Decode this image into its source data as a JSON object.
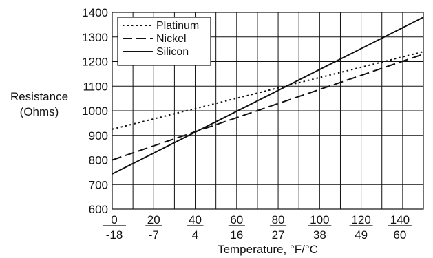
{
  "chart_data": {
    "type": "line",
    "xlabel": "Temperature, °F/°C",
    "ylabel_lines": [
      "Resistance",
      "(Ohms)"
    ],
    "x_ticks": [
      {
        "f": "0",
        "c": "-18"
      },
      {
        "f": "20",
        "c": "-7"
      },
      {
        "f": "40",
        "c": "4"
      },
      {
        "f": "60",
        "c": "16"
      },
      {
        "f": "80",
        "c": "27"
      },
      {
        "f": "100",
        "c": "38"
      },
      {
        "f": "120",
        "c": "49"
      },
      {
        "f": "140",
        "c": "60"
      }
    ],
    "y_ticks": [
      "600",
      "700",
      "800",
      "900",
      "1000",
      "1100",
      "1200",
      "1300",
      "1400"
    ],
    "xlim": [
      0,
      150
    ],
    "ylim": [
      600,
      1400
    ],
    "grid": true,
    "legend_position": "top-left",
    "series": [
      {
        "name": "Platinum",
        "style": "dotted",
        "x": [
          0,
          150
        ],
        "y": [
          925,
          1240
        ]
      },
      {
        "name": "Nickel",
        "style": "dashed",
        "x": [
          0,
          150
        ],
        "y": [
          800,
          1230
        ]
      },
      {
        "name": "Silicon",
        "style": "solid",
        "x": [
          0,
          150
        ],
        "y": [
          743,
          1380
        ]
      }
    ]
  }
}
